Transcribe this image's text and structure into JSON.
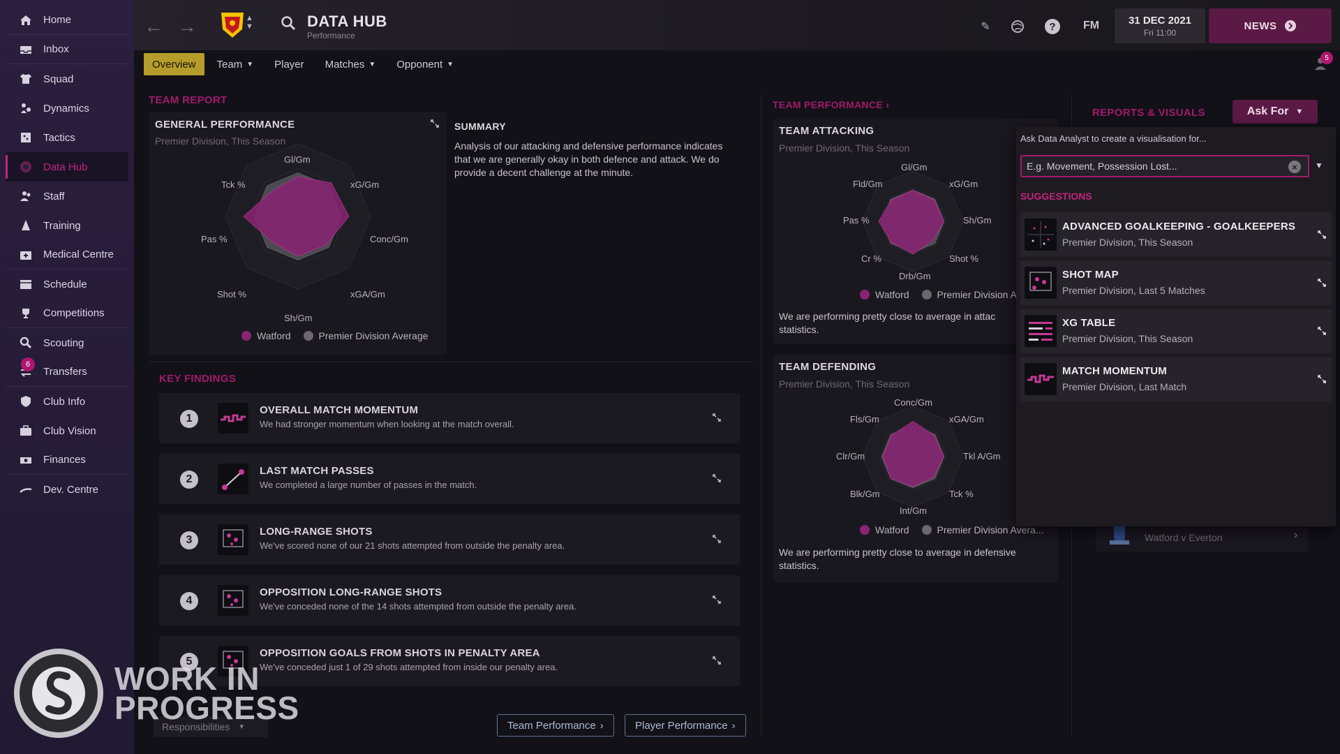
{
  "sidebar": {
    "items": [
      {
        "label": "Home",
        "icon": "home-icon"
      },
      {
        "label": "Inbox",
        "icon": "inbox-icon"
      },
      {
        "label": "Squad",
        "icon": "shirt-icon"
      },
      {
        "label": "Dynamics",
        "icon": "dynamics-icon"
      },
      {
        "label": "Tactics",
        "icon": "tactics-board-icon"
      },
      {
        "label": "Data Hub",
        "icon": "data-hub-icon"
      },
      {
        "label": "Staff",
        "icon": "staff-icon"
      },
      {
        "label": "Training",
        "icon": "training-cone-icon"
      },
      {
        "label": "Medical Centre",
        "icon": "medical-kit-icon"
      },
      {
        "label": "Schedule",
        "icon": "calendar-icon"
      },
      {
        "label": "Competitions",
        "icon": "trophy-icon"
      },
      {
        "label": "Scouting",
        "icon": "magnifier-icon"
      },
      {
        "label": "Transfers",
        "icon": "transfers-icon",
        "badge": "6"
      },
      {
        "label": "Club Info",
        "icon": "shield-icon"
      },
      {
        "label": "Club Vision",
        "icon": "briefcase-icon"
      },
      {
        "label": "Finances",
        "icon": "banknotes-icon"
      },
      {
        "label": "Dev. Centre",
        "icon": "dev-centre-icon"
      }
    ]
  },
  "header": {
    "title": "DATA HUB",
    "subtitle": "Performance",
    "date": "31 DEC 2021",
    "time": "Fri 11:00",
    "news_label": "NEWS",
    "fm_label": "FM",
    "notification_count": "5"
  },
  "tabs": [
    {
      "label": "Overview",
      "dropdown": false
    },
    {
      "label": "Team",
      "dropdown": true
    },
    {
      "label": "Player",
      "dropdown": false
    },
    {
      "label": "Matches",
      "dropdown": true
    },
    {
      "label": "Opponent",
      "dropdown": true
    }
  ],
  "team_report": {
    "section_title": "TEAM REPORT",
    "general": {
      "title": "GENERAL PERFORMANCE",
      "subtitle": "Premier Division, This Season",
      "axes": [
        "Gl/Gm",
        "xG/Gm",
        "Conc/Gm",
        "xGA/Gm",
        "Sh/Gm",
        "Shot %",
        "Pas %",
        "Tck %"
      ],
      "watford": [
        0.55,
        0.65,
        0.7,
        0.55,
        0.55,
        0.5,
        0.75,
        0.5
      ],
      "average": [
        0.6,
        0.6,
        0.6,
        0.6,
        0.6,
        0.6,
        0.6,
        0.6
      ]
    },
    "summary_title": "SUMMARY",
    "summary_text": "Analysis of our attacking and defensive performance indicates that we are generally okay in both defence and attack. We do provide a decent challenge at the minute.",
    "legend": {
      "team": "Watford",
      "average": "Premier Division Average"
    }
  },
  "key_findings": {
    "title": "KEY FINDINGS",
    "items": [
      {
        "num": "1",
        "title": "OVERALL MATCH MOMENTUM",
        "desc": "We had stronger momentum when looking at the match overall."
      },
      {
        "num": "2",
        "title": "LAST MATCH PASSES",
        "desc": "We completed a large number of passes in the match."
      },
      {
        "num": "3",
        "title": "LONG-RANGE SHOTS",
        "desc": "We've scored none of our 21 shots attempted from outside the penalty area."
      },
      {
        "num": "4",
        "title": "OPPOSITION LONG-RANGE SHOTS",
        "desc": "We've conceded none of the 14 shots attempted from outside the penalty area."
      },
      {
        "num": "5",
        "title": "OPPOSITION GOALS FROM SHOTS IN PENALTY AREA",
        "desc": "We've conceded just 1 of 29 shots attempted from inside our penalty area."
      }
    ]
  },
  "team_performance": {
    "section_title": "TEAM PERFORMANCE",
    "attacking": {
      "title": "TEAM ATTACKING",
      "subtitle": "Premier Division, This Season",
      "axes": [
        "Gl/Gm",
        "xG/Gm",
        "Sh/Gm",
        "Shot %",
        "Drb/Gm",
        "Cr %",
        "Pas %",
        "Fld/Gm"
      ],
      "legend_avg": "Premier Division A",
      "text": "We are performing pretty close to average in attac",
      "text2": "statistics."
    },
    "defending": {
      "title": "TEAM DEFENDING",
      "subtitle": "Premier Division, This Season",
      "axes": [
        "Conc/Gm",
        "xGA/Gm",
        "Tkl A/Gm",
        "Tck %",
        "Int/Gm",
        "Blk/Gm",
        "Clr/Gm",
        "Fls/Gm"
      ],
      "legend_avg": "Premier Division Avera...",
      "text": "We are performing pretty close to average in defensive statistics."
    },
    "legend_team": "Watford"
  },
  "reports": {
    "section_title": "REPORTS & VISUALS",
    "ask_label": "Ask For",
    "prompt": "Ask Data Analyst to create a visualisation for...",
    "input_value": "E.g. Movement, Possession Lost...",
    "suggestions_title": "SUGGESTIONS",
    "suggestions": [
      {
        "title": "ADVANCED GOALKEEPING - GOALKEEPERS",
        "sub": "Premier Division, This Season"
      },
      {
        "title": "SHOT MAP",
        "sub": "Premier Division, Last 5 Matches"
      },
      {
        "title": "XG TABLE",
        "sub": "Premier Division, This Season"
      },
      {
        "title": "MATCH MOMENTUM",
        "sub": "Premier Division, Last Match"
      }
    ],
    "match_item": "Watford v Everton"
  },
  "footer": {
    "responsibilities": "Responsibilities",
    "team_performance_btn": "Team Performance",
    "player_performance_btn": "Player Performance"
  },
  "watermark": {
    "line1": "WORK IN",
    "line2": "PROGRESS"
  },
  "colors": {
    "accent": "#a21a6c",
    "watford": "#8a2373",
    "average": "#5c5a60",
    "active_tab": "#b69c2a",
    "news": "#5a1a45"
  }
}
